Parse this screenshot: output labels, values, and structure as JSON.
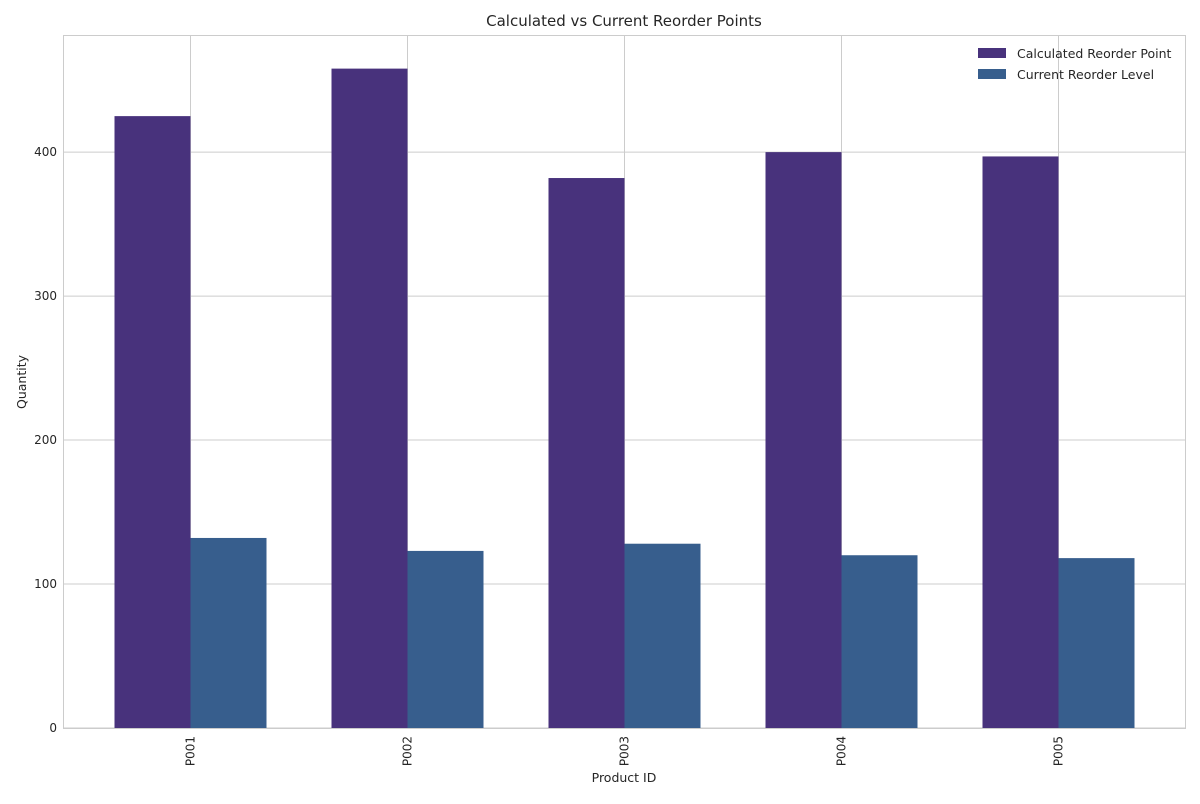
{
  "chart_data": {
    "type": "bar",
    "title": "Calculated vs Current Reorder Points",
    "xlabel": "Product ID",
    "ylabel": "Quantity",
    "categories": [
      "P001",
      "P002",
      "P003",
      "P004",
      "P005"
    ],
    "series": [
      {
        "name": "Calculated Reorder Point",
        "color": "#48327c",
        "values": [
          425,
          458,
          382,
          400,
          397
        ]
      },
      {
        "name": "Current Reorder Level",
        "color": "#375e8d",
        "values": [
          132,
          123,
          128,
          120,
          118
        ]
      }
    ],
    "ylim": [
      0,
      481
    ],
    "yticks": [
      0,
      100,
      200,
      300,
      400
    ],
    "grid": true,
    "legend_position": "top-right"
  }
}
